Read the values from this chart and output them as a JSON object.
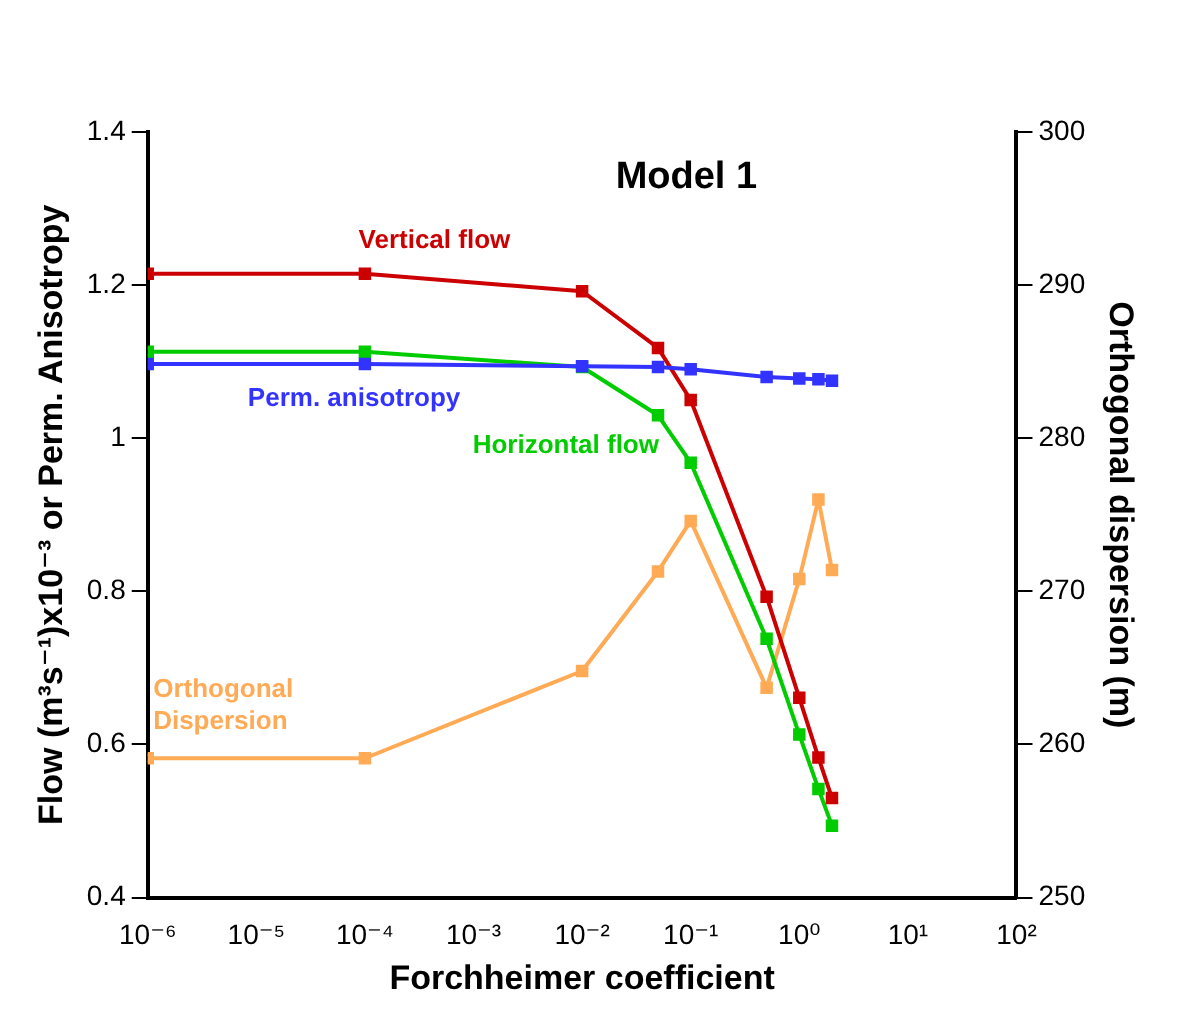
{
  "chart_data": {
    "type": "line",
    "title": "Model 1",
    "xlabel": "Forchheimer coefficient",
    "ylabel": "Flow (m³s⁻¹)x10⁻³ or Perm. Anisotropy",
    "y2label": "Orthogonal dispersion (m)",
    "x": [
      1e-06,
      0.0001,
      0.01,
      0.05,
      0.1,
      0.5,
      1,
      1.5,
      2
    ],
    "series": [
      {
        "name": "Vertical flow",
        "color": "#cc0000",
        "values": [
          1.215,
          1.215,
          1.192,
          1.118,
          1.05,
          0.793,
          0.661,
          0.583,
          0.53
        ]
      },
      {
        "name": "Horizontal flow",
        "color": "#00cc00",
        "values": [
          1.113,
          1.113,
          1.093,
          1.03,
          0.968,
          0.738,
          0.613,
          0.542,
          0.494
        ]
      },
      {
        "name": "Perm. anisotropy",
        "color": "#3333ff",
        "values": [
          1.097,
          1.097,
          1.094,
          1.093,
          1.09,
          1.08,
          1.078,
          1.077,
          1.075
        ]
      },
      {
        "name": "Orthogonal Dispersion",
        "color": "#ffaa55",
        "axis": "y2",
        "values": [
          259.1,
          259.1,
          264.8,
          271.3,
          274.6,
          263.7,
          270.8,
          276.0,
          271.4
        ]
      }
    ],
    "log": "x",
    "xlim": [
      1e-06,
      100
    ],
    "xticks": [
      {
        "value": 1e-06,
        "label": "10⁻⁶"
      },
      {
        "value": 1e-05,
        "label": "10⁻⁵"
      },
      {
        "value": 0.0001,
        "label": "10⁻⁴"
      },
      {
        "value": 0.001,
        "label": "10⁻³"
      },
      {
        "value": 0.01,
        "label": "10⁻²"
      },
      {
        "value": 0.1,
        "label": "10⁻¹"
      },
      {
        "value": 1,
        "label": "10⁰"
      },
      {
        "value": 10,
        "label": "10¹"
      },
      {
        "value": 100,
        "label": "10²"
      }
    ],
    "ylim": [
      0.4,
      1.4
    ],
    "yticks": [
      0.4,
      0.6,
      0.8,
      1,
      1.2,
      1.4
    ],
    "y2lim": [
      250,
      300
    ],
    "y2ticks": [
      250,
      260,
      270,
      280,
      290,
      300
    ],
    "grid": false,
    "legend": false,
    "marker": "square",
    "line_style": "solid"
  }
}
